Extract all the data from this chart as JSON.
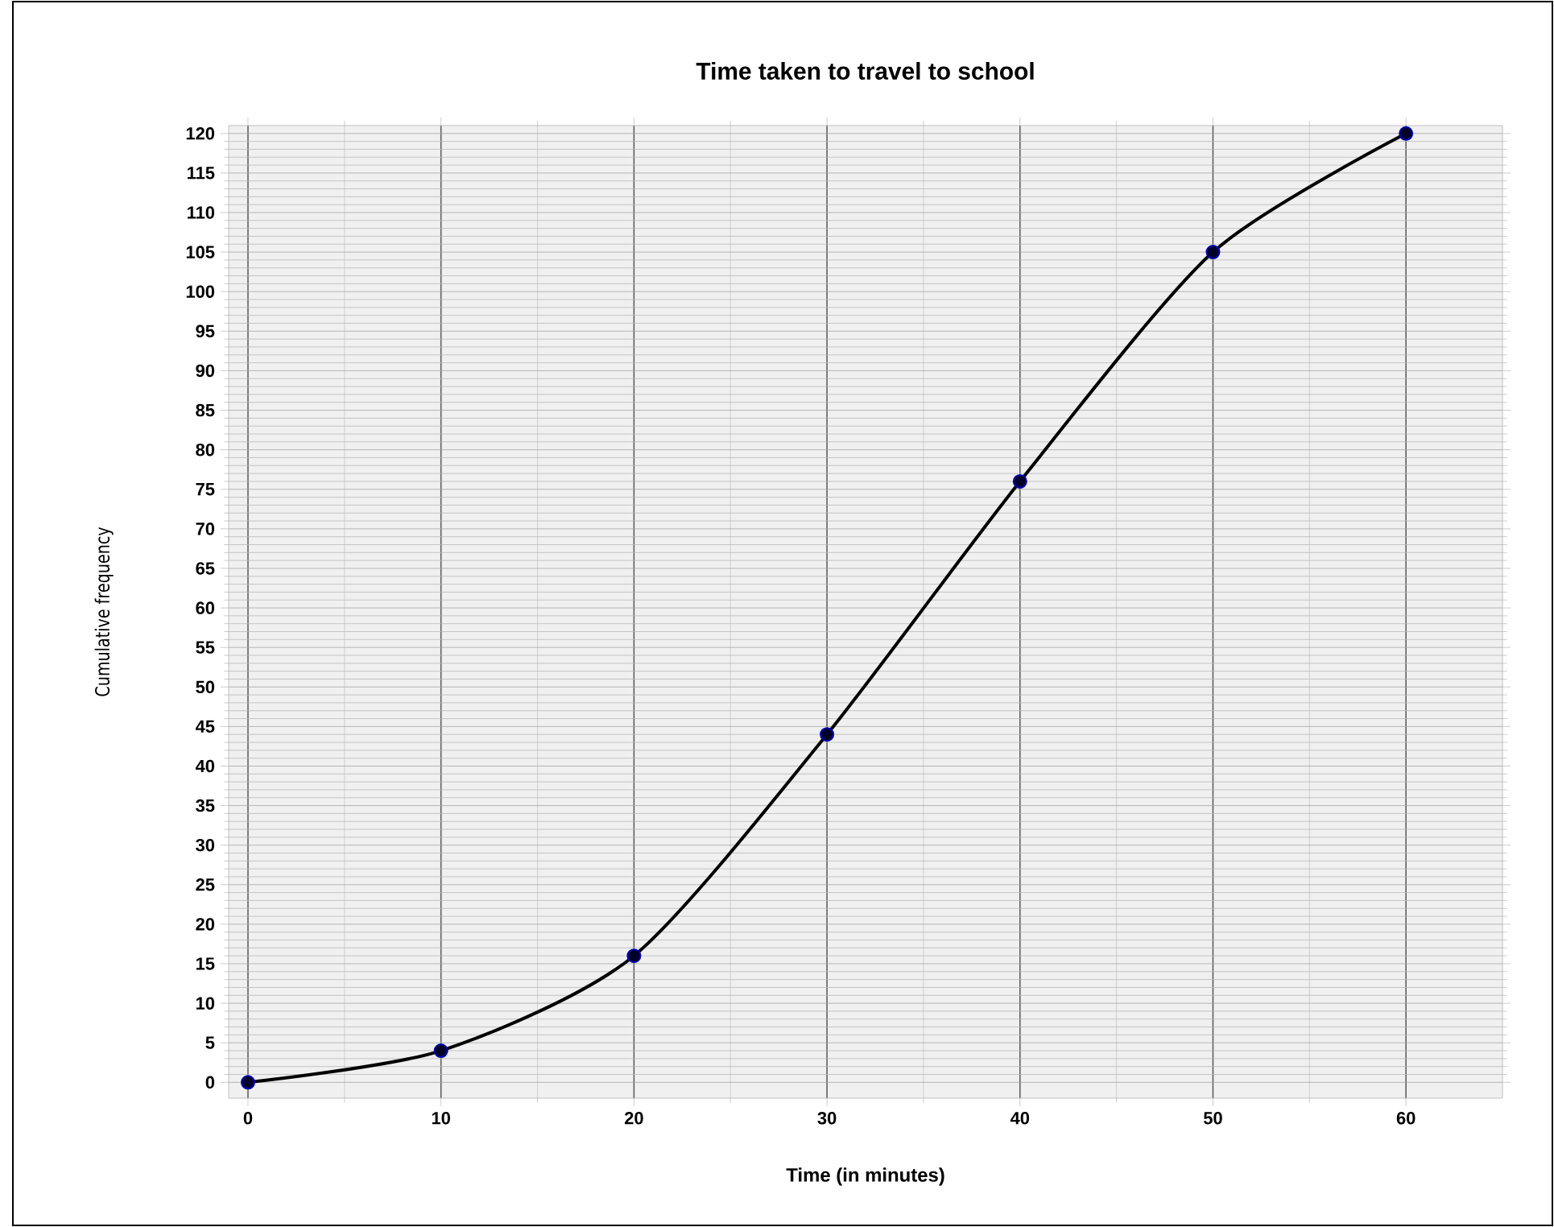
{
  "chart_data": {
    "type": "line",
    "title": "Time taken to travel to school",
    "xlabel": "Time (in minutes)",
    "ylabel": "Cumulative frequency",
    "x": [
      0,
      10,
      20,
      30,
      40,
      50,
      60
    ],
    "series": [
      {
        "color": "#000000",
        "values": [
          0,
          4,
          16,
          44,
          76,
          105,
          120
        ]
      }
    ],
    "xlim": [
      -1,
      65
    ],
    "ylim": [
      -2,
      121
    ],
    "xticks": [
      0,
      10,
      20,
      30,
      40,
      50,
      60
    ],
    "yticks": [
      0,
      5,
      10,
      15,
      20,
      25,
      30,
      35,
      40,
      45,
      50,
      55,
      60,
      65,
      70,
      75,
      80,
      85,
      90,
      95,
      100,
      105,
      110,
      115,
      120
    ],
    "grid": true,
    "marker": "circle",
    "line_style": "solid"
  }
}
